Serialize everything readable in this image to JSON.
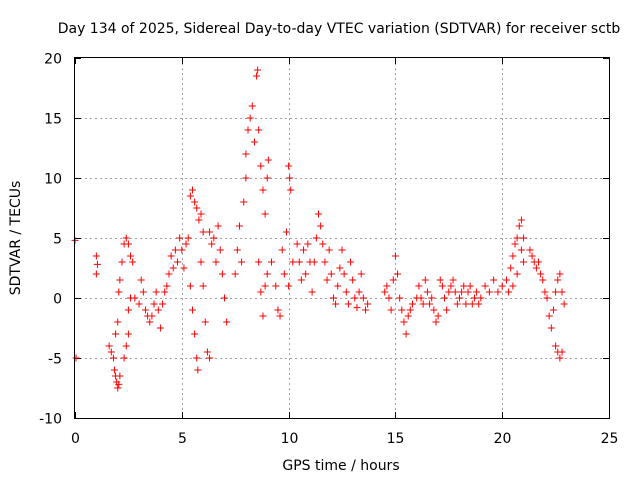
{
  "chart_data": {
    "type": "scatter",
    "title": "Day 134 of 2025, Sidereal Day-to-day VTEC variation (SDTVAR) for receiver sctb",
    "xlabel": "GPS time / hours",
    "ylabel": "SDTVAR / TECUs",
    "xlim": [
      0,
      25
    ],
    "ylim": [
      -10,
      20
    ],
    "xticks": [
      0,
      5,
      10,
      15,
      20,
      25
    ],
    "yticks": [
      -10,
      -5,
      0,
      5,
      10,
      15,
      20
    ],
    "xtick_labels": [
      "0",
      "5",
      "10",
      "15",
      "20",
      "25"
    ],
    "ytick_labels": [
      "-10",
      "-5",
      "0",
      "5",
      "10",
      "15",
      "20"
    ],
    "grid": true,
    "marker": "+",
    "series": [
      {
        "name": "sctb",
        "color": "#ff0000",
        "points": [
          [
            0.0,
            4.8
          ],
          [
            0.05,
            -5.0
          ],
          [
            1.0,
            2.0
          ],
          [
            1.0,
            3.5
          ],
          [
            1.05,
            2.8
          ],
          [
            1.6,
            -4.0
          ],
          [
            1.7,
            -4.5
          ],
          [
            1.8,
            -5.0
          ],
          [
            1.85,
            -6.0
          ],
          [
            1.9,
            -6.5
          ],
          [
            1.95,
            -7.0
          ],
          [
            2.0,
            -7.5
          ],
          [
            2.05,
            -7.2
          ],
          [
            2.1,
            -6.5
          ],
          [
            1.9,
            -3.0
          ],
          [
            2.0,
            -2.0
          ],
          [
            2.05,
            0.5
          ],
          [
            2.1,
            1.5
          ],
          [
            2.2,
            3.0
          ],
          [
            2.3,
            4.5
          ],
          [
            2.4,
            5.0
          ],
          [
            2.5,
            4.5
          ],
          [
            2.6,
            3.5
          ],
          [
            2.7,
            3.0
          ],
          [
            2.3,
            -5.0
          ],
          [
            2.4,
            -4.0
          ],
          [
            2.5,
            -3.0
          ],
          [
            2.5,
            -1.0
          ],
          [
            2.6,
            0.0
          ],
          [
            2.8,
            0.0
          ],
          [
            3.0,
            -0.5
          ],
          [
            3.1,
            1.5
          ],
          [
            3.2,
            0.5
          ],
          [
            3.3,
            -1.0
          ],
          [
            3.4,
            -1.5
          ],
          [
            3.5,
            -2.0
          ],
          [
            3.6,
            -1.5
          ],
          [
            3.7,
            -0.5
          ],
          [
            3.8,
            0.5
          ],
          [
            3.9,
            -1.0
          ],
          [
            4.0,
            -2.5
          ],
          [
            4.1,
            -0.5
          ],
          [
            4.2,
            0.5
          ],
          [
            4.3,
            1.0
          ],
          [
            4.4,
            2.0
          ],
          [
            4.5,
            3.5
          ],
          [
            4.6,
            2.5
          ],
          [
            4.7,
            4.0
          ],
          [
            4.8,
            3.0
          ],
          [
            4.9,
            5.0
          ],
          [
            5.0,
            4.0
          ],
          [
            5.1,
            2.5
          ],
          [
            5.2,
            4.5
          ],
          [
            5.3,
            5.0
          ],
          [
            5.4,
            1.0
          ],
          [
            5.5,
            -1.0
          ],
          [
            5.6,
            -3.0
          ],
          [
            5.7,
            -5.0
          ],
          [
            5.75,
            -6.0
          ],
          [
            5.4,
            8.5
          ],
          [
            5.5,
            9.0
          ],
          [
            5.6,
            8.0
          ],
          [
            5.7,
            7.5
          ],
          [
            5.8,
            6.5
          ],
          [
            5.9,
            7.0
          ],
          [
            6.0,
            5.5
          ],
          [
            5.9,
            3.0
          ],
          [
            6.0,
            1.0
          ],
          [
            6.1,
            -2.0
          ],
          [
            6.2,
            -4.5
          ],
          [
            6.3,
            -5.0
          ],
          [
            6.3,
            5.5
          ],
          [
            6.4,
            4.5
          ],
          [
            6.5,
            5.0
          ],
          [
            6.6,
            3.0
          ],
          [
            6.7,
            6.0
          ],
          [
            6.8,
            4.0
          ],
          [
            6.9,
            2.0
          ],
          [
            7.0,
            0.0
          ],
          [
            7.1,
            -2.0
          ],
          [
            7.5,
            2.0
          ],
          [
            7.6,
            4.0
          ],
          [
            7.7,
            6.0
          ],
          [
            7.8,
            3.0
          ],
          [
            7.9,
            8.0
          ],
          [
            8.0,
            10.0
          ],
          [
            8.0,
            12.0
          ],
          [
            8.1,
            14.0
          ],
          [
            8.2,
            15.0
          ],
          [
            8.3,
            16.0
          ],
          [
            8.4,
            13.0
          ],
          [
            8.5,
            18.5
          ],
          [
            8.55,
            19.0
          ],
          [
            8.6,
            14.0
          ],
          [
            8.7,
            11.0
          ],
          [
            8.8,
            9.0
          ],
          [
            8.9,
            7.0
          ],
          [
            9.0,
            10.0
          ],
          [
            9.05,
            11.5
          ],
          [
            8.6,
            3.0
          ],
          [
            8.7,
            0.5
          ],
          [
            8.8,
            -1.5
          ],
          [
            8.9,
            1.0
          ],
          [
            9.0,
            2.0
          ],
          [
            9.2,
            3.0
          ],
          [
            9.4,
            1.0
          ],
          [
            9.5,
            -1.0
          ],
          [
            9.6,
            -1.5
          ],
          [
            9.7,
            4.0
          ],
          [
            9.8,
            2.0
          ],
          [
            9.9,
            5.5
          ],
          [
            10.0,
            11.0
          ],
          [
            10.05,
            10.0
          ],
          [
            10.1,
            9.0
          ],
          [
            10.0,
            1.0
          ],
          [
            10.2,
            3.0
          ],
          [
            10.4,
            4.5
          ],
          [
            10.5,
            3.0
          ],
          [
            10.6,
            1.5
          ],
          [
            10.7,
            4.0
          ],
          [
            10.8,
            2.0
          ],
          [
            10.9,
            4.5
          ],
          [
            11.0,
            3.0
          ],
          [
            11.1,
            0.5
          ],
          [
            11.2,
            3.0
          ],
          [
            11.3,
            5.0
          ],
          [
            11.4,
            7.0
          ],
          [
            11.5,
            6.0
          ],
          [
            11.6,
            4.5
          ],
          [
            11.7,
            3.0
          ],
          [
            11.8,
            1.5
          ],
          [
            11.9,
            4.0
          ],
          [
            12.0,
            2.0
          ],
          [
            12.1,
            0.0
          ],
          [
            12.2,
            -0.5
          ],
          [
            12.3,
            1.0
          ],
          [
            12.4,
            2.5
          ],
          [
            12.5,
            4.0
          ],
          [
            12.6,
            2.0
          ],
          [
            12.7,
            0.5
          ],
          [
            12.8,
            -0.5
          ],
          [
            12.9,
            3.0
          ],
          [
            13.0,
            1.5
          ],
          [
            13.1,
            0.0
          ],
          [
            13.2,
            -0.8
          ],
          [
            13.3,
            0.5
          ],
          [
            13.4,
            2.0
          ],
          [
            13.5,
            0.0
          ],
          [
            13.6,
            -1.0
          ],
          [
            13.7,
            -0.5
          ],
          [
            14.5,
            0.5
          ],
          [
            14.6,
            1.0
          ],
          [
            14.7,
            0.0
          ],
          [
            14.8,
            -1.0
          ],
          [
            14.9,
            1.5
          ],
          [
            15.0,
            3.5
          ],
          [
            15.1,
            2.0
          ],
          [
            15.2,
            0.0
          ],
          [
            15.3,
            -1.0
          ],
          [
            15.4,
            -2.0
          ],
          [
            15.5,
            -3.0
          ],
          [
            15.6,
            -1.5
          ],
          [
            15.7,
            -1.0
          ],
          [
            15.8,
            -0.5
          ],
          [
            16.0,
            0.0
          ],
          [
            16.1,
            1.0
          ],
          [
            16.2,
            0.0
          ],
          [
            16.3,
            -0.5
          ],
          [
            16.4,
            1.5
          ],
          [
            16.5,
            0.5
          ],
          [
            16.6,
            -0.5
          ],
          [
            16.7,
            0.0
          ],
          [
            16.8,
            -1.0
          ],
          [
            16.9,
            -2.0
          ],
          [
            17.0,
            -1.5
          ],
          [
            17.1,
            1.5
          ],
          [
            17.2,
            1.0
          ],
          [
            17.3,
            0.0
          ],
          [
            17.4,
            -1.0
          ],
          [
            17.5,
            0.5
          ],
          [
            17.6,
            1.0
          ],
          [
            17.7,
            1.5
          ],
          [
            17.8,
            0.5
          ],
          [
            17.9,
            -0.5
          ],
          [
            18.0,
            0.0
          ],
          [
            18.1,
            0.5
          ],
          [
            18.2,
            1.0
          ],
          [
            18.3,
            -0.5
          ],
          [
            18.4,
            0.5
          ],
          [
            18.5,
            1.0
          ],
          [
            18.6,
            -0.5
          ],
          [
            18.7,
            0.0
          ],
          [
            18.8,
            0.5
          ],
          [
            18.9,
            -0.5
          ],
          [
            19.0,
            0.0
          ],
          [
            19.2,
            1.0
          ],
          [
            19.4,
            0.5
          ],
          [
            19.6,
            1.5
          ],
          [
            19.8,
            0.5
          ],
          [
            20.0,
            1.0
          ],
          [
            20.2,
            1.5
          ],
          [
            20.4,
            2.5
          ],
          [
            20.5,
            3.5
          ],
          [
            20.6,
            4.5
          ],
          [
            20.7,
            5.0
          ],
          [
            20.8,
            6.0
          ],
          [
            20.9,
            6.5
          ],
          [
            21.0,
            5.0
          ],
          [
            20.3,
            0.5
          ],
          [
            20.5,
            1.0
          ],
          [
            20.7,
            2.0
          ],
          [
            20.9,
            4.0
          ],
          [
            21.0,
            3.0
          ],
          [
            21.3,
            4.0
          ],
          [
            21.4,
            3.5
          ],
          [
            21.5,
            3.0
          ],
          [
            21.6,
            2.5
          ],
          [
            21.7,
            3.0
          ],
          [
            21.8,
            2.0
          ],
          [
            21.9,
            1.5
          ],
          [
            22.0,
            0.5
          ],
          [
            22.1,
            0.0
          ],
          [
            22.2,
            -1.5
          ],
          [
            22.3,
            -2.5
          ],
          [
            22.4,
            -1.0
          ],
          [
            22.5,
            0.5
          ],
          [
            22.6,
            1.5
          ],
          [
            22.7,
            2.0
          ],
          [
            22.8,
            0.5
          ],
          [
            22.9,
            -0.5
          ],
          [
            22.5,
            -4.0
          ],
          [
            22.6,
            -4.5
          ],
          [
            22.7,
            -5.0
          ],
          [
            22.8,
            -4.5
          ]
        ]
      }
    ]
  }
}
